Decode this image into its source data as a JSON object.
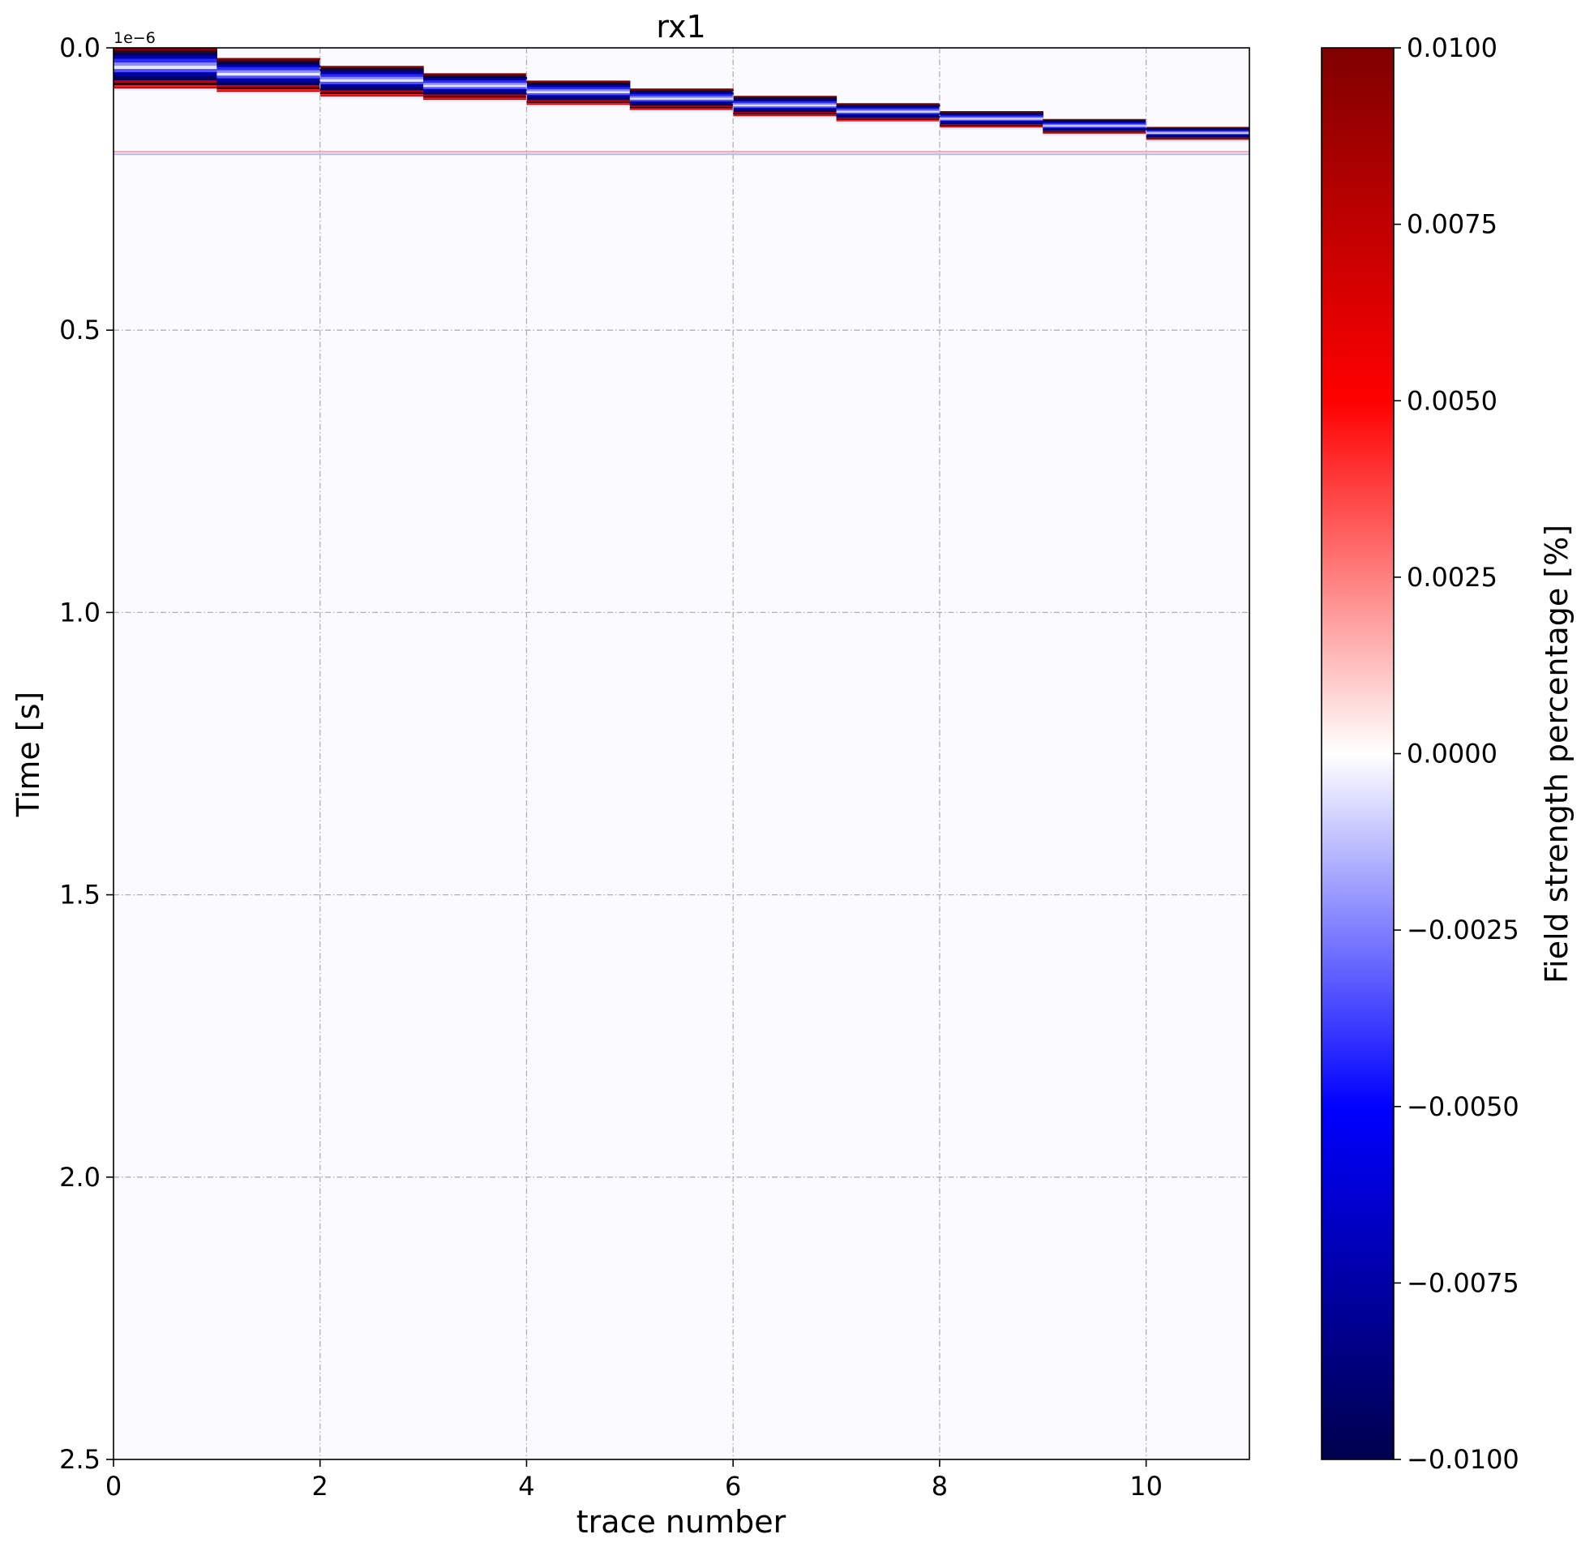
{
  "chart_data": {
    "type": "heatmap",
    "title": "rx1",
    "xlabel": "trace number",
    "ylabel": "Time [s]",
    "y_offset_label": "1e−6",
    "xlim": [
      0,
      11
    ],
    "ylim": [
      2.5,
      0.0
    ],
    "y_inverted": true,
    "x_ticks": [
      0,
      2,
      4,
      6,
      8,
      10
    ],
    "x_tick_labels": [
      "0",
      "2",
      "4",
      "6",
      "8",
      "10"
    ],
    "y_ticks": [
      0.0,
      0.5,
      1.0,
      1.5,
      2.0,
      2.5
    ],
    "y_tick_labels": [
      "0.0",
      "0.5",
      "1.0",
      "1.5",
      "2.0",
      "2.5"
    ],
    "grid": true,
    "colorbar": {
      "label": "Field strength percentage [%]",
      "vmin": -0.01,
      "vmax": 0.01,
      "colormap": "seismic",
      "ticks": [
        0.01,
        0.0075,
        0.005,
        0.0025,
        0.0,
        -0.0025,
        -0.005,
        -0.0075,
        -0.01
      ],
      "tick_labels": [
        "0.0100",
        "0.0075",
        "0.0050",
        "0.0025",
        "0.0000",
        "−0.0025",
        "−0.0050",
        "−0.0075",
        "−0.0100"
      ],
      "colors": [
        "#00004c",
        "#0000ff",
        "#ffffff",
        "#ff0000",
        "#7f0000"
      ]
    },
    "background_color": "#fbfbff",
    "traces": [
      {
        "trace": 0,
        "t_start": 0.0,
        "t_end": 0.072
      },
      {
        "trace": 1,
        "t_start": 0.018,
        "t_end": 0.078
      },
      {
        "trace": 2,
        "t_start": 0.032,
        "t_end": 0.086
      },
      {
        "trace": 3,
        "t_start": 0.045,
        "t_end": 0.092
      },
      {
        "trace": 4,
        "t_start": 0.058,
        "t_end": 0.101
      },
      {
        "trace": 5,
        "t_start": 0.072,
        "t_end": 0.11
      },
      {
        "trace": 6,
        "t_start": 0.085,
        "t_end": 0.121
      },
      {
        "trace": 7,
        "t_start": 0.098,
        "t_end": 0.13
      },
      {
        "trace": 8,
        "t_start": 0.112,
        "t_end": 0.141
      },
      {
        "trace": 9,
        "t_start": 0.126,
        "t_end": 0.152
      },
      {
        "trace": 10,
        "t_start": 0.14,
        "t_end": 0.163
      }
    ],
    "horizontal_artifact": {
      "t": 0.187
    }
  }
}
